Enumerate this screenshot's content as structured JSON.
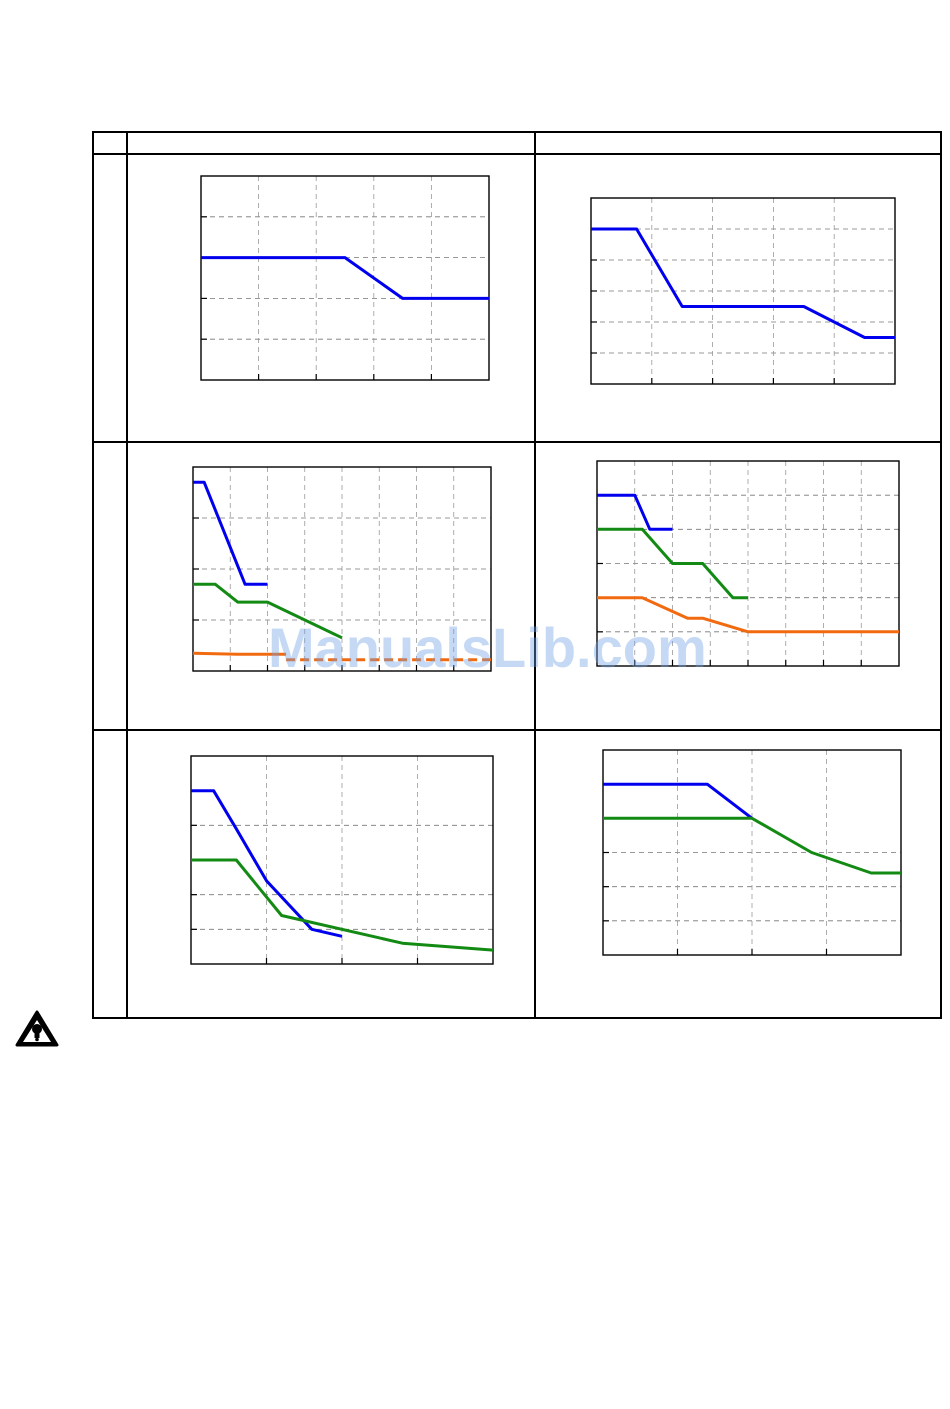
{
  "watermark": {
    "text": "ManualsLib.com"
  },
  "warning": {
    "icon": "warning-triangle-icon"
  },
  "colors": {
    "blue": "#0000ee",
    "green": "#138a13",
    "orange": "#f26a10",
    "grid": "#888888"
  },
  "chart_data": [
    {
      "type": "line",
      "title": "",
      "xlabel": "",
      "ylabel": "",
      "grid": true,
      "xlim": [
        0,
        100
      ],
      "ylim": [
        0,
        5
      ],
      "xticks": [
        20,
        40,
        60,
        80
      ],
      "yticks": [
        1,
        2,
        3,
        4
      ],
      "series": [
        {
          "color": "blue",
          "points": [
            [
              0,
              3
            ],
            [
              50,
              3
            ],
            [
              70,
              2
            ],
            [
              100,
              2
            ]
          ]
        }
      ]
    },
    {
      "type": "line",
      "title": "",
      "xlabel": "",
      "ylabel": "",
      "grid": true,
      "xlim": [
        0,
        100
      ],
      "ylim": [
        0,
        6
      ],
      "xticks": [
        20,
        40,
        60,
        80
      ],
      "yticks": [
        1,
        2,
        3,
        4,
        5
      ],
      "series": [
        {
          "color": "blue",
          "points": [
            [
              0,
              5
            ],
            [
              15,
              5
            ],
            [
              30,
              2.5
            ],
            [
              70,
              2.5
            ],
            [
              90,
              1.5
            ],
            [
              100,
              1.5
            ]
          ]
        }
      ]
    },
    {
      "type": "line",
      "title": "",
      "xlabel": "",
      "ylabel": "",
      "grid": true,
      "xlim": [
        0,
        80
      ],
      "ylim": [
        0,
        4
      ],
      "xticks": [
        10,
        20,
        30,
        40,
        50,
        60,
        70
      ],
      "yticks": [
        1,
        2,
        3
      ],
      "series": [
        {
          "color": "blue",
          "points": [
            [
              0,
              3.7
            ],
            [
              3,
              3.7
            ],
            [
              14,
              1.7
            ],
            [
              20,
              1.7
            ]
          ]
        },
        {
          "color": "green",
          "points": [
            [
              0,
              1.7
            ],
            [
              6,
              1.7
            ],
            [
              12,
              1.35
            ],
            [
              20,
              1.35
            ],
            [
              40,
              0.65
            ]
          ]
        },
        {
          "color": "orange",
          "points": [
            [
              0,
              0.35
            ],
            [
              12,
              0.33
            ],
            [
              25,
              0.33
            ]
          ]
        },
        {
          "color": "orange",
          "dashed": true,
          "points": [
            [
              25,
              0.22
            ],
            [
              80,
              0.22
            ]
          ]
        }
      ]
    },
    {
      "type": "line",
      "title": "",
      "xlabel": "",
      "ylabel": "",
      "grid": true,
      "xlim": [
        0,
        80
      ],
      "ylim": [
        0,
        6
      ],
      "xticks": [
        10,
        20,
        30,
        40,
        50,
        60,
        70
      ],
      "yticks": [
        1,
        2,
        3,
        4,
        5
      ],
      "series": [
        {
          "color": "blue",
          "points": [
            [
              0,
              5
            ],
            [
              10,
              5
            ],
            [
              14,
              4
            ],
            [
              20,
              4
            ]
          ]
        },
        {
          "color": "green",
          "points": [
            [
              0,
              4
            ],
            [
              12,
              4
            ],
            [
              20,
              3
            ],
            [
              28,
              3
            ],
            [
              36,
              2
            ],
            [
              40,
              2
            ]
          ]
        },
        {
          "color": "orange",
          "points": [
            [
              0,
              2
            ],
            [
              12,
              2
            ],
            [
              24,
              1.4
            ],
            [
              28,
              1.4
            ],
            [
              40,
              1
            ],
            [
              80,
              1
            ]
          ]
        }
      ]
    },
    {
      "type": "line",
      "title": "",
      "xlabel": "",
      "ylabel": "",
      "grid": true,
      "xlim": [
        0,
        80
      ],
      "ylim": [
        0,
        6
      ],
      "xticks": [
        20,
        40,
        60
      ],
      "yticks": [
        1,
        2,
        4
      ],
      "series": [
        {
          "color": "blue",
          "points": [
            [
              0,
              5
            ],
            [
              6,
              5
            ],
            [
              12,
              3.9
            ],
            [
              20,
              2.4
            ],
            [
              32,
              1
            ],
            [
              40,
              0.8
            ]
          ]
        },
        {
          "color": "green",
          "points": [
            [
              0,
              3
            ],
            [
              12,
              3
            ],
            [
              24,
              1.4
            ],
            [
              56,
              0.6
            ],
            [
              80,
              0.4
            ]
          ]
        }
      ]
    },
    {
      "type": "line",
      "title": "",
      "xlabel": "",
      "ylabel": "",
      "grid": true,
      "xlim": [
        0,
        80
      ],
      "ylim": [
        0,
        6
      ],
      "xticks": [
        20,
        40,
        60
      ],
      "yticks": [
        1,
        2,
        3
      ],
      "series": [
        {
          "color": "blue",
          "points": [
            [
              0,
              5
            ],
            [
              28,
              5
            ],
            [
              40,
              4
            ]
          ]
        },
        {
          "color": "green",
          "points": [
            [
              0,
              4
            ],
            [
              40,
              4
            ],
            [
              56,
              3
            ],
            [
              72,
              2.4
            ],
            [
              80,
              2.4
            ]
          ]
        }
      ]
    }
  ]
}
